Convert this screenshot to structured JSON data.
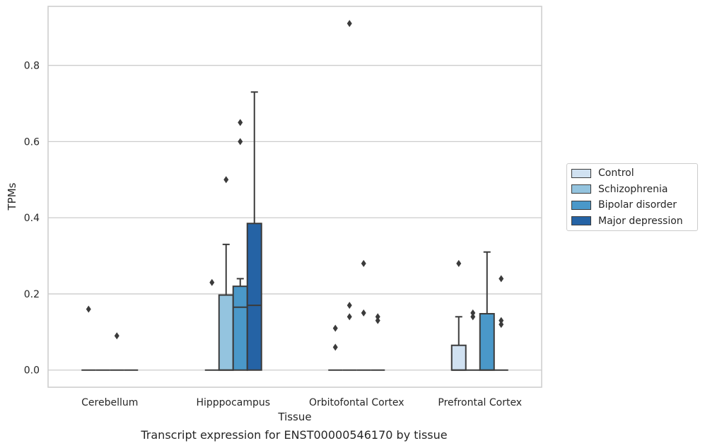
{
  "chart_data": {
    "type": "box",
    "title": "Transcript expression for ENST00000546170 by tissue",
    "xlabel": "Tissue",
    "ylabel": "TPMs",
    "ylim": [
      -0.045,
      0.955
    ],
    "yticks": [
      0.0,
      0.2,
      0.4,
      0.6,
      0.8
    ],
    "ytick_labels": [
      "0.0",
      "0.2",
      "0.4",
      "0.6",
      "0.8"
    ],
    "grid": "horizontal",
    "legend_position": "right, outside plot",
    "categories": [
      "Cerebellum",
      "Hipppocampus",
      "Orbitofontal Cortex",
      "Prefrontal Cortex"
    ],
    "series": [
      {
        "name": "Control",
        "color": "#d0e1f1",
        "boxes": [
          {
            "q1": 0,
            "median": 0,
            "q3": 0,
            "whisker_low": 0,
            "whisker_high": 0,
            "outliers": [
              0.16
            ]
          },
          {
            "q1": 0,
            "median": 0,
            "q3": 0,
            "whisker_low": 0,
            "whisker_high": 0,
            "outliers": [
              0.23
            ]
          },
          {
            "q1": 0,
            "median": 0,
            "q3": 0,
            "whisker_low": 0,
            "whisker_high": 0,
            "outliers": [
              0.06,
              0.11
            ]
          },
          {
            "q1": 0,
            "median": 0,
            "q3": 0.065,
            "whisker_low": 0,
            "whisker_high": 0.14,
            "outliers": [
              0.28
            ]
          }
        ]
      },
      {
        "name": "Schizophrenia",
        "color": "#94c4df",
        "boxes": [
          {
            "q1": 0,
            "median": 0,
            "q3": 0,
            "whisker_low": 0,
            "whisker_high": 0,
            "outliers": []
          },
          {
            "q1": 0,
            "median": 0,
            "q3": 0.197,
            "whisker_low": 0,
            "whisker_high": 0.33,
            "outliers": [
              0.5
            ]
          },
          {
            "q1": 0,
            "median": 0,
            "q3": 0,
            "whisker_low": 0,
            "whisker_high": 0,
            "outliers": [
              0.14,
              0.17,
              0.91
            ]
          },
          {
            "q1": 0,
            "median": 0,
            "q3": 0,
            "whisker_low": 0,
            "whisker_high": 0,
            "outliers": [
              0.14,
              0.15
            ]
          }
        ]
      },
      {
        "name": "Bipolar disorder",
        "color": "#4a98c9",
        "boxes": [
          {
            "q1": 0,
            "median": 0,
            "q3": 0,
            "whisker_low": 0,
            "whisker_high": 0,
            "outliers": [
              0.09
            ]
          },
          {
            "q1": 0,
            "median": 0.165,
            "q3": 0.22,
            "whisker_low": 0,
            "whisker_high": 0.24,
            "outliers": [
              0.6,
              0.65
            ]
          },
          {
            "q1": 0,
            "median": 0,
            "q3": 0,
            "whisker_low": 0,
            "whisker_high": 0,
            "outliers": [
              0.15,
              0.28
            ]
          },
          {
            "q1": 0,
            "median": 0,
            "q3": 0.148,
            "whisker_low": 0,
            "whisker_high": 0.31,
            "outliers": []
          }
        ]
      },
      {
        "name": "Major depression",
        "color": "#2563a5",
        "boxes": [
          {
            "q1": 0,
            "median": 0,
            "q3": 0,
            "whisker_low": 0,
            "whisker_high": 0,
            "outliers": []
          },
          {
            "q1": 0,
            "median": 0.17,
            "q3": 0.385,
            "whisker_low": 0,
            "whisker_high": 0.73,
            "outliers": []
          },
          {
            "q1": 0,
            "median": 0,
            "q3": 0,
            "whisker_low": 0,
            "whisker_high": 0,
            "outliers": [
              0.13,
              0.14
            ]
          },
          {
            "q1": 0,
            "median": 0,
            "q3": 0,
            "whisker_low": 0,
            "whisker_high": 0,
            "outliers": [
              0.12,
              0.13,
              0.24
            ]
          }
        ]
      }
    ]
  }
}
